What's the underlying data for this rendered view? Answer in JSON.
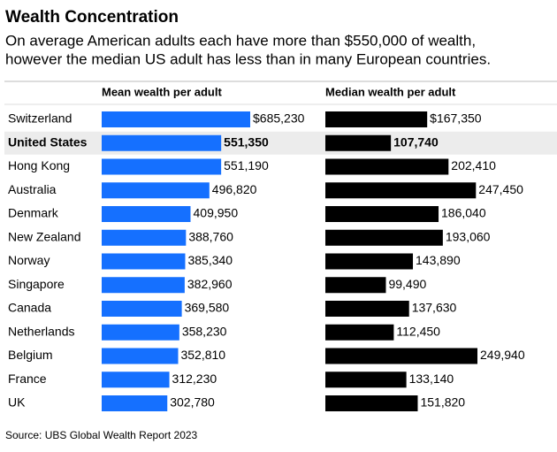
{
  "chart_data": {
    "type": "bar",
    "orientation": "horizontal",
    "title": "Wealth Concentration",
    "subtitle": [
      "On average American adults each have more than $550,000 of wealth,",
      "however the median US adult has less than in many European countries."
    ],
    "categories": [
      "Switzerland",
      "United States",
      "Hong Kong",
      "Australia",
      "Denmark",
      "New Zealand",
      "Norway",
      "Singapore",
      "Canada",
      "Netherlands",
      "Belgium",
      "France",
      "UK"
    ],
    "highlight": "United States",
    "series": [
      {
        "name": "Mean wealth per adult",
        "color": "#1570ff",
        "values": [
          685230,
          551350,
          551190,
          496820,
          409950,
          388760,
          385340,
          382960,
          369580,
          358230,
          352810,
          312230,
          302780
        ],
        "value_labels": [
          "$685,230",
          "551,350",
          "551,190",
          "496,820",
          "409,950",
          "388,760",
          "385,340",
          "382,960",
          "369,580",
          "358,230",
          "352,810",
          "312,230",
          "302,780"
        ]
      },
      {
        "name": "Median wealth per adult",
        "color": "#000000",
        "values": [
          167350,
          107740,
          202410,
          247450,
          186040,
          193060,
          143890,
          99490,
          137630,
          112450,
          249940,
          133140,
          151820
        ],
        "value_labels": [
          "$167,350",
          "107,740",
          "202,410",
          "247,450",
          "186,040",
          "193,060",
          "143,890",
          "99,490",
          "137,630",
          "112,450",
          "249,940",
          "133,140",
          "151,820"
        ]
      }
    ],
    "source": "Source: UBS Global Wealth Report 2023"
  }
}
